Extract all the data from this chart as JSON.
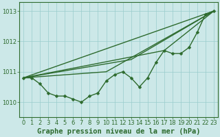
{
  "x": [
    0,
    1,
    2,
    3,
    4,
    5,
    6,
    7,
    8,
    9,
    10,
    11,
    12,
    13,
    14,
    15,
    16,
    17,
    18,
    19,
    20,
    21,
    22,
    23
  ],
  "y": [
    1010.8,
    1010.8,
    1010.6,
    1010.3,
    1010.2,
    1010.2,
    1010.1,
    1010.0,
    1010.2,
    1010.3,
    1010.7,
    1010.9,
    1011.0,
    1010.8,
    1010.5,
    1010.8,
    1011.3,
    1011.7,
    1011.6,
    1011.6,
    1011.8,
    1012.3,
    1012.9,
    1013.0
  ],
  "trend1_x": [
    0,
    23
  ],
  "trend1_y": [
    1010.8,
    1013.0
  ],
  "trend2_x": [
    0,
    10,
    23
  ],
  "trend2_y": [
    1010.8,
    1011.0,
    1013.0
  ],
  "trend3_x": [
    0,
    13,
    23
  ],
  "trend3_y": [
    1010.8,
    1011.4,
    1013.0
  ],
  "trend4_x": [
    0,
    17,
    23
  ],
  "trend4_y": [
    1010.8,
    1011.7,
    1013.0
  ],
  "line_color": "#2d6a2d",
  "marker_color": "#2d6a2d",
  "bg_color": "#cce8e8",
  "grid_color": "#99cccc",
  "axis_color": "#2d6a2d",
  "title": "Graphe pression niveau de la mer (hPa)",
  "ylim": [
    1009.5,
    1013.3
  ],
  "xlim": [
    -0.5,
    23.5
  ],
  "yticks": [
    1010,
    1011,
    1012,
    1013
  ],
  "xticks": [
    0,
    1,
    2,
    3,
    4,
    5,
    6,
    7,
    8,
    9,
    10,
    11,
    12,
    13,
    14,
    15,
    16,
    17,
    18,
    19,
    20,
    21,
    22,
    23
  ],
  "tick_fontsize": 6,
  "title_fontsize": 7.5,
  "marker_size": 2.5,
  "line_width": 1.0
}
